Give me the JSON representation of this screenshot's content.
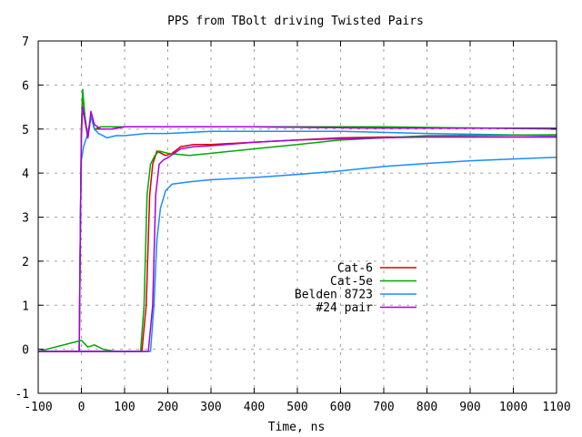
{
  "chart_data": {
    "type": "line",
    "title": "PPS from TBolt driving Twisted Pairs",
    "xlabel": "Time, ns",
    "ylabel": "",
    "xlim": [
      -100,
      1100
    ],
    "ylim": [
      -1,
      7
    ],
    "xticks": [
      -100,
      0,
      100,
      200,
      300,
      400,
      500,
      600,
      700,
      800,
      900,
      1000,
      1100
    ],
    "yticks": [
      -1,
      0,
      1,
      2,
      3,
      4,
      5,
      6,
      7
    ],
    "grid": true,
    "legend_position": "center-right",
    "series": [
      {
        "name": "Cat-6",
        "color": "#dd0000",
        "points": [
          [
            -100,
            -0.05
          ],
          [
            -5,
            -0.05
          ],
          [
            -2,
            3.0
          ],
          [
            0,
            5.0
          ],
          [
            3,
            5.8
          ],
          [
            8,
            5.3
          ],
          [
            15,
            4.8
          ],
          [
            22,
            5.3
          ],
          [
            30,
            5.0
          ],
          [
            45,
            5.0
          ],
          [
            70,
            5.0
          ],
          [
            100,
            5.05
          ],
          [
            130,
            5.05
          ],
          [
            200,
            5.05
          ],
          [
            400,
            5.05
          ],
          [
            700,
            5.02
          ],
          [
            1100,
            5.02
          ]
        ]
      },
      {
        "name": "Cat-5e",
        "color": "#00aa00",
        "points": [
          [
            -100,
            -0.05
          ],
          [
            -5,
            -0.05
          ],
          [
            -2,
            3.0
          ],
          [
            0,
            5.0
          ],
          [
            3,
            5.9
          ],
          [
            8,
            5.3
          ],
          [
            15,
            4.8
          ],
          [
            22,
            5.3
          ],
          [
            30,
            5.0
          ],
          [
            45,
            5.05
          ],
          [
            70,
            5.05
          ],
          [
            100,
            5.05
          ],
          [
            200,
            5.05
          ],
          [
            400,
            5.05
          ],
          [
            700,
            5.05
          ],
          [
            1100,
            5.0
          ]
        ]
      },
      {
        "name": "Belden 8723",
        "color": "#1a8cff",
        "points": [
          [
            -100,
            -0.05
          ],
          [
            -5,
            -0.05
          ],
          [
            -2,
            3.0
          ],
          [
            0,
            4.3
          ],
          [
            5,
            4.6
          ],
          [
            15,
            4.9
          ],
          [
            22,
            5.3
          ],
          [
            30,
            5.0
          ],
          [
            40,
            4.9
          ],
          [
            60,
            4.8
          ],
          [
            80,
            4.85
          ],
          [
            100,
            4.85
          ],
          [
            150,
            4.9
          ],
          [
            200,
            4.9
          ],
          [
            300,
            4.95
          ],
          [
            400,
            4.95
          ],
          [
            600,
            4.95
          ],
          [
            800,
            4.9
          ],
          [
            1100,
            4.85
          ]
        ]
      },
      {
        "name": "#24 pair",
        "color": "#aa00dd",
        "points": [
          [
            -100,
            -0.05
          ],
          [
            -5,
            -0.05
          ],
          [
            -2,
            3.0
          ],
          [
            0,
            4.8
          ],
          [
            3,
            5.5
          ],
          [
            8,
            5.2
          ],
          [
            15,
            4.8
          ],
          [
            22,
            5.4
          ],
          [
            30,
            5.1
          ],
          [
            45,
            5.0
          ],
          [
            70,
            5.0
          ],
          [
            100,
            5.05
          ],
          [
            200,
            5.05
          ],
          [
            400,
            5.05
          ],
          [
            700,
            5.02
          ],
          [
            1100,
            5.02
          ]
        ]
      },
      {
        "name": "",
        "color": "#dd0000",
        "points": [
          [
            -100,
            -0.05
          ],
          [
            140,
            -0.05
          ],
          [
            150,
            1.0
          ],
          [
            158,
            3.5
          ],
          [
            165,
            4.2
          ],
          [
            175,
            4.5
          ],
          [
            185,
            4.45
          ],
          [
            195,
            4.4
          ],
          [
            210,
            4.45
          ],
          [
            230,
            4.6
          ],
          [
            260,
            4.65
          ],
          [
            300,
            4.65
          ],
          [
            400,
            4.7
          ],
          [
            500,
            4.75
          ],
          [
            600,
            4.8
          ],
          [
            700,
            4.82
          ],
          [
            800,
            4.82
          ],
          [
            1000,
            4.82
          ],
          [
            1100,
            4.82
          ]
        ]
      },
      {
        "name": "",
        "color": "#00aa00",
        "points": [
          [
            -100,
            -0.05
          ],
          [
            0,
            0.2
          ],
          [
            15,
            0.05
          ],
          [
            30,
            0.1
          ],
          [
            50,
            0.0
          ],
          [
            80,
            -0.05
          ],
          [
            137,
            -0.05
          ],
          [
            145,
            1.0
          ],
          [
            152,
            3.5
          ],
          [
            160,
            4.2
          ],
          [
            170,
            4.4
          ],
          [
            180,
            4.5
          ],
          [
            200,
            4.45
          ],
          [
            250,
            4.4
          ],
          [
            300,
            4.45
          ],
          [
            400,
            4.55
          ],
          [
            500,
            4.65
          ],
          [
            600,
            4.75
          ],
          [
            700,
            4.8
          ],
          [
            800,
            4.85
          ],
          [
            1100,
            4.87
          ]
        ]
      },
      {
        "name": "",
        "color": "#1a8cff",
        "points": [
          [
            -100,
            -0.05
          ],
          [
            160,
            -0.05
          ],
          [
            168,
            1.0
          ],
          [
            175,
            2.5
          ],
          [
            183,
            3.2
          ],
          [
            195,
            3.6
          ],
          [
            210,
            3.75
          ],
          [
            250,
            3.8
          ],
          [
            300,
            3.85
          ],
          [
            400,
            3.9
          ],
          [
            500,
            3.97
          ],
          [
            600,
            4.05
          ],
          [
            700,
            4.15
          ],
          [
            800,
            4.22
          ],
          [
            900,
            4.28
          ],
          [
            1000,
            4.32
          ],
          [
            1100,
            4.36
          ]
        ]
      },
      {
        "name": "",
        "color": "#aa00dd",
        "points": [
          [
            -100,
            -0.05
          ],
          [
            155,
            -0.05
          ],
          [
            165,
            1.0
          ],
          [
            172,
            3.5
          ],
          [
            180,
            4.2
          ],
          [
            190,
            4.3
          ],
          [
            200,
            4.35
          ],
          [
            230,
            4.55
          ],
          [
            260,
            4.6
          ],
          [
            300,
            4.62
          ],
          [
            400,
            4.7
          ],
          [
            500,
            4.75
          ],
          [
            600,
            4.78
          ],
          [
            700,
            4.8
          ],
          [
            800,
            4.82
          ],
          [
            1100,
            4.82
          ]
        ]
      }
    ]
  }
}
